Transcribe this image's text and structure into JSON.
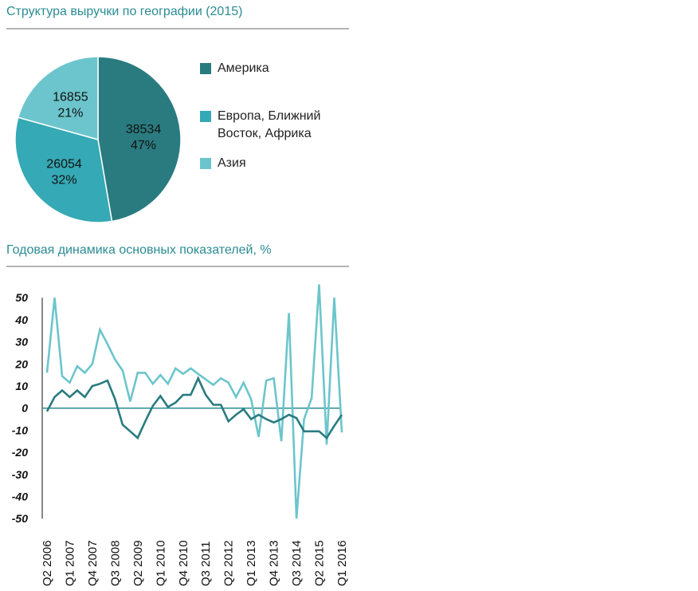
{
  "pie_title": "Структура выручки по географии (2015)",
  "line_title": "Годовая динамика основных показателей, %",
  "chart_data": [
    {
      "type": "pie",
      "title": "Структура выручки по географии (2015)",
      "slices": [
        {
          "label": "Америка",
          "value": 38534,
          "percent": "47%",
          "color": "#2a7b80"
        },
        {
          "label": "Европа, Ближний Восток, Африка",
          "label_lines": [
            "Европа, Ближний",
            "Восток, Африка"
          ],
          "value": 26054,
          "percent": "32%",
          "color": "#35a9b5"
        },
        {
          "label": "Азия",
          "value": 16855,
          "percent": "21%",
          "color": "#6cc5cc"
        }
      ],
      "legend_placement": "right"
    },
    {
      "type": "line",
      "title": "Годовая динамика основных показателей, %",
      "ylim": [
        -50,
        50
      ],
      "yticks": [
        "50",
        "40",
        "30",
        "20",
        "10",
        "0",
        "-10",
        "-20",
        "-30",
        "-40",
        "-50"
      ],
      "ytick_values": [
        50,
        40,
        30,
        20,
        10,
        0,
        -10,
        -20,
        -30,
        -40,
        -50
      ],
      "xtick_labels": [
        "Q2 2006",
        "Q1 2007",
        "Q4 2007",
        "Q3 2008",
        "Q2 2009",
        "Q1 2010",
        "Q4 2010",
        "Q3 2011",
        "Q2 2012",
        "Q1 2013",
        "Q4 2013",
        "Q3 2014",
        "Q2 2015",
        "Q1 2016"
      ],
      "xtick_every": 3,
      "n_points": 40,
      "series": [
        {
          "name": "dark",
          "color": "#2a7b80",
          "values": [
            -1.5,
            5,
            8,
            5,
            8,
            5,
            10,
            11,
            12.5,
            4,
            -7.5,
            -10.5,
            -13.5,
            -6,
            1,
            5.5,
            0.5,
            2.5,
            6,
            6,
            13.5,
            6,
            1.5,
            1.5,
            -6,
            -3,
            -0.5,
            -5,
            -3,
            -5,
            -6.5,
            -5,
            -3,
            -4.5,
            -10.5,
            -10.5,
            -10.5,
            -13.5,
            -8,
            -3
          ]
        },
        {
          "name": "light",
          "color": "#6cc5cc",
          "values": [
            16,
            50,
            14.5,
            11.5,
            19,
            16,
            20,
            35.5,
            29,
            22,
            17,
            3,
            16,
            16,
            11,
            15,
            11,
            18,
            15.5,
            18,
            15.5,
            13,
            10.5,
            13.5,
            11.5,
            5,
            11.5,
            4,
            -13,
            12.5,
            13.5,
            -15,
            43,
            -50,
            -5,
            4.5,
            56,
            -16.5,
            50,
            -11
          ]
        }
      ]
    }
  ]
}
